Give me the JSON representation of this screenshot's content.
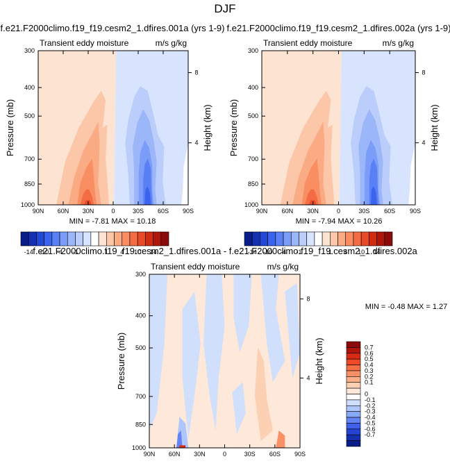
{
  "page_title": "DJF",
  "chart_data": [
    {
      "type": "heatmap",
      "title": "f.e21.F2000climo.f19_f19.cesm2_1.dfires.001a (yrs 1-9)",
      "subtitle_left": "Transient eddy moisture",
      "subtitle_right": "m/s g/kg",
      "ylabel": "Pressure (mb)",
      "ylabel_right": "Height (km)",
      "x_ticks": [
        "90N",
        "60N",
        "30N",
        "0",
        "30S",
        "60S",
        "90S"
      ],
      "y_ticks": [
        "300",
        "400",
        "500",
        "700",
        "850",
        "1000"
      ],
      "y_ticks_right": [
        "8",
        "4"
      ],
      "stats": {
        "min_label": "MIN =",
        "min": "-7.81",
        "max_label": "MAX =",
        "max": "10.18"
      }
    },
    {
      "type": "heatmap",
      "title": "f.e21.F2000climo.f19_f19.cesm2_1.dfires.002a (yrs 1-9)",
      "subtitle_left": "Transient eddy moisture",
      "subtitle_right": "m/s g/kg",
      "ylabel": "Pressure (mb)",
      "ylabel_right": "Height (km)",
      "x_ticks": [
        "90N",
        "60N",
        "30N",
        "0",
        "30S",
        "60S",
        "90S"
      ],
      "y_ticks": [
        "300",
        "400",
        "500",
        "700",
        "850",
        "1000"
      ],
      "y_ticks_right": [
        "8",
        "4"
      ],
      "stats": {
        "min_label": "MIN =",
        "min": "-7.94",
        "max_label": "MAX =",
        "max": "10.26"
      }
    },
    {
      "type": "heatmap",
      "title": "f.e21.F2000climo.f19_f19.cesm2_1.dfires.001a - f.e21.F2000climo.f19_f19.cesm2_1.dfires.002a",
      "subtitle_left": "Transient eddy moisture",
      "subtitle_right": "m/s g/kg",
      "ylabel": "Pressure (mb)",
      "ylabel_right": "Height (km)",
      "x_ticks": [
        "90N",
        "60N",
        "30N",
        "0",
        "30S",
        "60S",
        "90S"
      ],
      "y_ticks": [
        "300",
        "400",
        "500",
        "700",
        "850",
        "1000"
      ],
      "y_ticks_right": [
        "8",
        "4"
      ],
      "stats": {
        "min_label": "MIN =",
        "min": "-0.48",
        "max_label": "MAX =",
        "max": "1.27"
      }
    }
  ],
  "colorbar_main": {
    "labels": [
      "-14",
      "-10",
      "-4",
      "-1",
      "1",
      "4",
      "10",
      "14"
    ],
    "colors": [
      "#081d8a",
      "#1530b0",
      "#2148d6",
      "#3a63ee",
      "#5a80f5",
      "#7b9cf8",
      "#9cb6fa",
      "#bbcdfb",
      "#d8e4fd",
      "#ffffff",
      "#fde3d1",
      "#fcc7a9",
      "#fbab84",
      "#f98e62",
      "#f46c43",
      "#e84a27",
      "#cf2c12",
      "#b01509",
      "#8b0a0a"
    ]
  },
  "colorbar_diff": {
    "labels": [
      "0.7",
      "0.6",
      "0.5",
      "0.4",
      "0.3",
      "0.2",
      "0.1",
      "0",
      "-0.1",
      "-0.2",
      "-0.3",
      "-0.4",
      "-0.5",
      "-0.6",
      "-0.7"
    ],
    "colors": [
      "#8b0a0a",
      "#b01509",
      "#d62b12",
      "#ee4a27",
      "#f66e44",
      "#f99066",
      "#fbae88",
      "#fcd0b2",
      "#fde8d9",
      "#ffffff",
      "#cfdffc",
      "#aec6fb",
      "#8aa8f8",
      "#6384f4",
      "#3e60ea",
      "#2443d0",
      "#1330ae",
      "#081d8a"
    ]
  }
}
